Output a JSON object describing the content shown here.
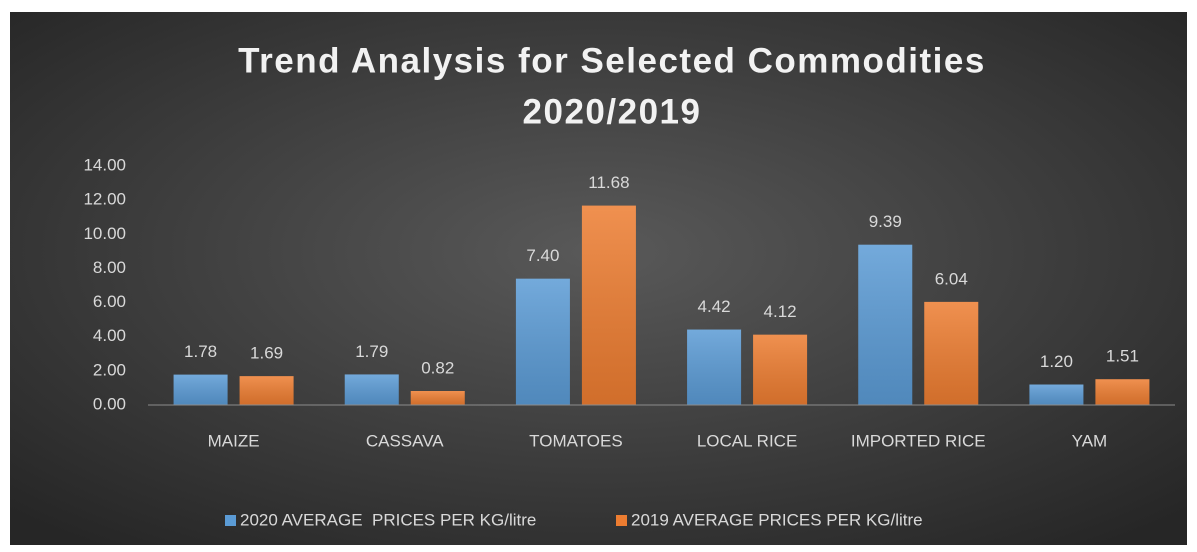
{
  "chart_data": {
    "type": "bar",
    "title": [
      "Trend Analysis for Selected Commodities",
      "2020/2019"
    ],
    "categories": [
      "MAIZE",
      "CASSAVA",
      "TOMATOES",
      "LOCAL RICE",
      "IMPORTED RICE",
      "YAM"
    ],
    "series": [
      {
        "name": "2020 AVERAGE  PRICES PER KG/litre",
        "color": "#5b9bd5",
        "values": [
          1.78,
          1.79,
          7.4,
          4.42,
          9.39,
          1.2
        ],
        "value_labels": [
          "1.78",
          "1.79",
          "7.40",
          "4.42",
          "9.39",
          "1.20"
        ]
      },
      {
        "name": "2019 AVERAGE PRICES PER KG/litre",
        "color": "#ed7d31",
        "values": [
          1.69,
          0.82,
          11.68,
          4.12,
          6.04,
          1.51
        ],
        "value_labels": [
          "1.69",
          "0.82",
          "11.68",
          "4.12",
          "6.04",
          "1.51"
        ]
      }
    ],
    "ylim": [
      0,
      14
    ],
    "yticks": [
      {
        "value": 0,
        "label": "0.00"
      },
      {
        "value": 2,
        "label": "2.00"
      },
      {
        "value": 4,
        "label": "4.00"
      },
      {
        "value": 6,
        "label": "6.00"
      },
      {
        "value": 8,
        "label": "8.00"
      },
      {
        "value": 10,
        "label": "10.00"
      },
      {
        "value": 12,
        "label": "12.00"
      },
      {
        "value": 14,
        "label": "14.00"
      }
    ],
    "grid": false,
    "legend": "bottom"
  }
}
